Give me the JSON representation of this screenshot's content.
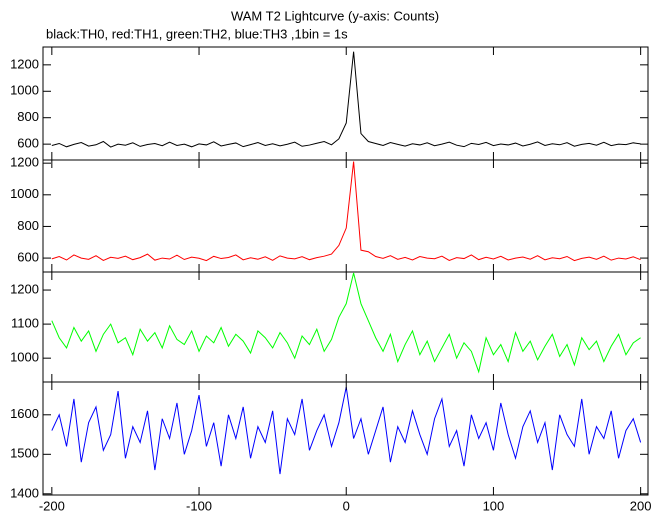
{
  "chart_data": [
    {
      "type": "line",
      "title": "WAM T2 Lightcurve (y-axis: Counts)",
      "subtitle": "black:TH0, red:TH1, green:TH2, blue:TH3 ,1bin = 1s",
      "color": "#000000",
      "x": [
        -200,
        -195,
        -190,
        -185,
        -180,
        -175,
        -170,
        -165,
        -160,
        -155,
        -150,
        -145,
        -140,
        -135,
        -130,
        -125,
        -120,
        -115,
        -110,
        -105,
        -100,
        -95,
        -90,
        -85,
        -80,
        -75,
        -70,
        -65,
        -60,
        -55,
        -50,
        -45,
        -40,
        -35,
        -30,
        -25,
        -20,
        -15,
        -10,
        -5,
        0,
        5,
        10,
        15,
        20,
        25,
        30,
        35,
        40,
        45,
        50,
        55,
        60,
        65,
        70,
        75,
        80,
        85,
        90,
        95,
        100,
        105,
        110,
        115,
        120,
        125,
        130,
        135,
        140,
        145,
        150,
        155,
        160,
        165,
        170,
        175,
        180,
        185,
        190,
        195,
        200
      ],
      "values": [
        590,
        605,
        580,
        598,
        612,
        585,
        595,
        620,
        578,
        600,
        592,
        610,
        583,
        597,
        605,
        588,
        615,
        590,
        600,
        580,
        602,
        594,
        618,
        586,
        598,
        609,
        581,
        596,
        612,
        590,
        603,
        587,
        599,
        615,
        584,
        593,
        607,
        620,
        595,
        640,
        760,
        1300,
        680,
        620,
        605,
        590,
        612,
        598,
        585,
        603,
        594,
        610,
        588,
        600,
        615,
        592,
        581,
        606,
        597,
        613,
        589,
        601,
        594,
        608,
        586,
        599,
        617,
        590,
        603,
        595,
        611,
        584,
        598,
        606,
        592,
        614,
        589,
        600,
        596,
        610,
        602
      ],
      "xlim": [
        -206,
        205
      ],
      "xticks": [
        -200,
        -100,
        0,
        100,
        200
      ],
      "ylim": [
        480,
        1335
      ],
      "yticks": [
        600,
        800,
        1000,
        1200
      ]
    },
    {
      "type": "line",
      "color": "#ff0000",
      "x": [
        -200,
        -195,
        -190,
        -185,
        -180,
        -175,
        -170,
        -165,
        -160,
        -155,
        -150,
        -145,
        -140,
        -135,
        -130,
        -125,
        -120,
        -115,
        -110,
        -105,
        -100,
        -95,
        -90,
        -85,
        -80,
        -75,
        -70,
        -65,
        -60,
        -55,
        -50,
        -45,
        -40,
        -35,
        -30,
        -25,
        -20,
        -15,
        -10,
        -5,
        0,
        5,
        10,
        15,
        20,
        25,
        30,
        35,
        40,
        45,
        50,
        55,
        60,
        65,
        70,
        75,
        80,
        85,
        90,
        95,
        100,
        105,
        110,
        115,
        120,
        125,
        130,
        135,
        140,
        145,
        150,
        155,
        160,
        165,
        170,
        175,
        180,
        185,
        190,
        195,
        200
      ],
      "values": [
        595,
        610,
        588,
        620,
        600,
        592,
        615,
        585,
        605,
        598,
        612,
        590,
        603,
        625,
        587,
        600,
        594,
        618,
        591,
        606,
        599,
        584,
        611,
        597,
        604,
        620,
        589,
        602,
        593,
        608,
        586,
        614,
        600,
        595,
        609,
        590,
        603,
        612,
        625,
        680,
        790,
        1210,
        650,
        640,
        610,
        598,
        615,
        592,
        604,
        588,
        610,
        600,
        596,
        612,
        585,
        603,
        597,
        620,
        590,
        605,
        594,
        611,
        588,
        600,
        607,
        593,
        615,
        589,
        602,
        596,
        610,
        584,
        598,
        606,
        592,
        612,
        587,
        600,
        594,
        608,
        590
      ],
      "xlim": [
        -206,
        205
      ],
      "xticks": [
        -200,
        -100,
        0,
        100,
        200
      ],
      "ylim": [
        512,
        1220
      ],
      "yticks": [
        600,
        800,
        1000,
        1200
      ]
    },
    {
      "type": "line",
      "color": "#00ff00",
      "x": [
        -200,
        -195,
        -190,
        -185,
        -180,
        -175,
        -170,
        -165,
        -160,
        -155,
        -150,
        -145,
        -140,
        -135,
        -130,
        -125,
        -120,
        -115,
        -110,
        -105,
        -100,
        -95,
        -90,
        -85,
        -80,
        -75,
        -70,
        -65,
        -60,
        -55,
        -50,
        -45,
        -40,
        -35,
        -30,
        -25,
        -20,
        -15,
        -10,
        -5,
        0,
        5,
        10,
        15,
        20,
        25,
        30,
        35,
        40,
        45,
        50,
        55,
        60,
        65,
        70,
        75,
        80,
        85,
        90,
        95,
        100,
        105,
        110,
        115,
        120,
        125,
        130,
        135,
        140,
        145,
        150,
        155,
        160,
        165,
        170,
        175,
        180,
        185,
        190,
        195,
        200
      ],
      "values": [
        1110,
        1060,
        1030,
        1090,
        1050,
        1080,
        1020,
        1070,
        1100,
        1045,
        1060,
        1010,
        1085,
        1050,
        1075,
        1030,
        1095,
        1055,
        1040,
        1080,
        1020,
        1065,
        1045,
        1090,
        1035,
        1070,
        1050,
        1015,
        1080,
        1060,
        1030,
        1075,
        1045,
        1000,
        1065,
        1040,
        1085,
        1020,
        1055,
        1120,
        1160,
        1250,
        1160,
        1110,
        1060,
        1020,
        1070,
        990,
        1040,
        1080,
        1010,
        1050,
        990,
        1030,
        1070,
        1000,
        1045,
        1020,
        960,
        1060,
        1010,
        1040,
        990,
        1075,
        1020,
        1050,
        995,
        1035,
        1070,
        1005,
        1040,
        980,
        1060,
        1025,
        1050,
        990,
        1035,
        1070,
        1010,
        1045,
        1060
      ],
      "xlim": [
        -206,
        205
      ],
      "xticks": [
        -200,
        -100,
        0,
        100,
        200
      ],
      "ylim": [
        930,
        1253
      ],
      "yticks": [
        1000,
        1100,
        1200
      ]
    },
    {
      "type": "line",
      "color": "#0000ff",
      "x": [
        -200,
        -195,
        -190,
        -185,
        -180,
        -175,
        -170,
        -165,
        -160,
        -155,
        -150,
        -145,
        -140,
        -135,
        -130,
        -125,
        -120,
        -115,
        -110,
        -105,
        -100,
        -95,
        -90,
        -85,
        -80,
        -75,
        -70,
        -65,
        -60,
        -55,
        -50,
        -45,
        -40,
        -35,
        -30,
        -25,
        -20,
        -15,
        -10,
        -5,
        0,
        5,
        10,
        15,
        20,
        25,
        30,
        35,
        40,
        45,
        50,
        55,
        60,
        65,
        70,
        75,
        80,
        85,
        90,
        95,
        100,
        105,
        110,
        115,
        120,
        125,
        130,
        135,
        140,
        145,
        150,
        155,
        160,
        165,
        170,
        175,
        180,
        185,
        190,
        195,
        200
      ],
      "values": [
        1560,
        1600,
        1520,
        1640,
        1480,
        1580,
        1620,
        1510,
        1550,
        1660,
        1490,
        1570,
        1530,
        1610,
        1460,
        1590,
        1540,
        1630,
        1500,
        1560,
        1650,
        1520,
        1580,
        1470,
        1600,
        1540,
        1620,
        1490,
        1570,
        1530,
        1610,
        1450,
        1590,
        1550,
        1640,
        1510,
        1560,
        1600,
        1520,
        1580,
        1670,
        1540,
        1590,
        1500,
        1560,
        1620,
        1480,
        1570,
        1530,
        1610,
        1550,
        1500,
        1590,
        1640,
        1520,
        1560,
        1470,
        1600,
        1540,
        1580,
        1510,
        1630,
        1550,
        1490,
        1570,
        1610,
        1530,
        1580,
        1460,
        1600,
        1550,
        1520,
        1640,
        1500,
        1570,
        1540,
        1610,
        1490,
        1560,
        1590,
        1530
      ],
      "xlim": [
        -206,
        205
      ],
      "xticks": [
        -200,
        -100,
        0,
        100,
        200
      ],
      "ylim": [
        1397,
        1683
      ],
      "yticks": [
        1400,
        1500,
        1600
      ]
    }
  ]
}
